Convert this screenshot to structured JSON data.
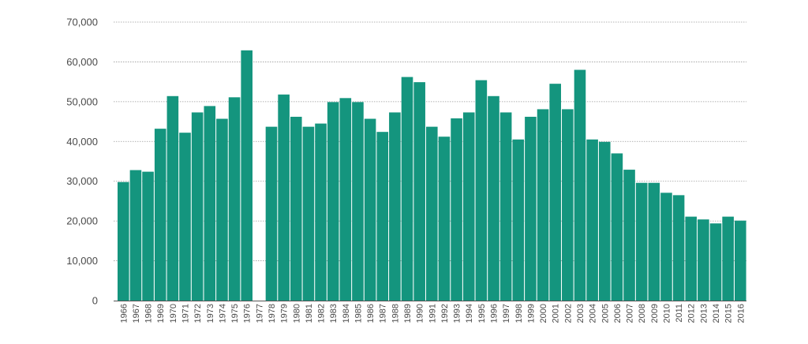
{
  "chart_data": {
    "type": "bar",
    "title": "",
    "xlabel": "",
    "ylabel": "",
    "ylim": [
      0,
      70000
    ],
    "y_ticks": [
      0,
      10000,
      20000,
      30000,
      40000,
      50000,
      60000,
      70000
    ],
    "y_tick_labels": [
      "0",
      "10,000",
      "20,000",
      "30,000",
      "40,000",
      "50,000",
      "60,000",
      "70,000"
    ],
    "grid": "horizontal dotted",
    "bar_color": "#14957e",
    "categories": [
      "1966",
      "1967",
      "1968",
      "1969",
      "1970",
      "1971",
      "1972",
      "1973",
      "1974",
      "1975",
      "1976",
      "1977",
      "1978",
      "1979",
      "1980",
      "1981",
      "1982",
      "1983",
      "1984",
      "1985",
      "1986",
      "1987",
      "1988",
      "1989",
      "1990",
      "1991",
      "1992",
      "1993",
      "1994",
      "1995",
      "1996",
      "1997",
      "1998",
      "1999",
      "2000",
      "2001",
      "2002",
      "2003",
      "2004",
      "2005",
      "2006",
      "2007",
      "2008",
      "2009",
      "2010",
      "2011",
      "2012",
      "2013",
      "2014",
      "2015",
      "2016"
    ],
    "values": [
      29800,
      32800,
      32400,
      43200,
      51400,
      42200,
      47300,
      48900,
      45700,
      51100,
      62900,
      null,
      43700,
      51800,
      46200,
      43700,
      44500,
      49900,
      50900,
      49900,
      45700,
      42400,
      47300,
      56200,
      54900,
      43700,
      41200,
      45800,
      47300,
      55400,
      51400,
      47300,
      40500,
      46200,
      48100,
      54500,
      48100,
      58000,
      40500,
      39900,
      37000,
      32900,
      29600,
      29600,
      27100,
      26500,
      21100,
      20400,
      19400,
      21100,
      20100
    ]
  }
}
